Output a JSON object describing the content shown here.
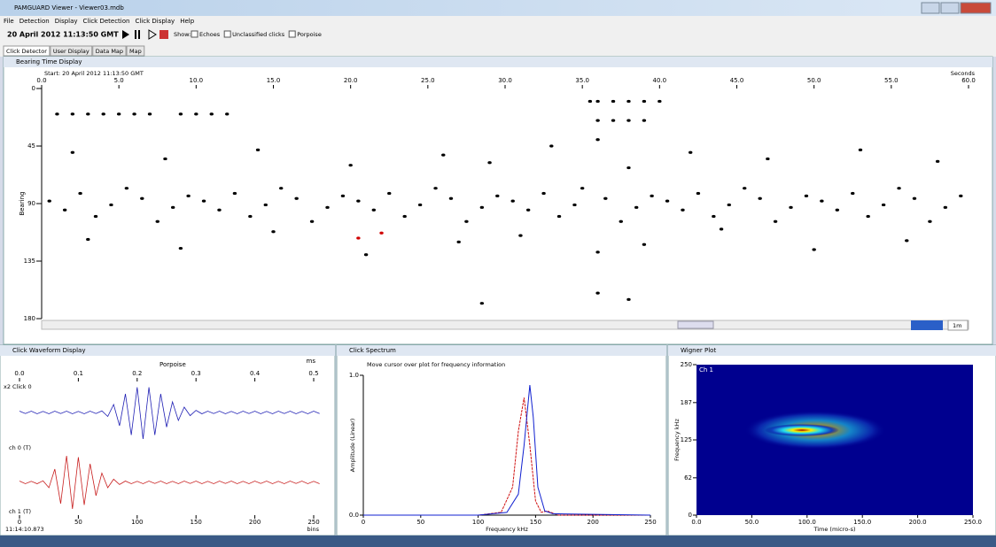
{
  "window": {
    "title": "PAMGUARD Viewer - Viewer03.mdb"
  },
  "menu": [
    "File",
    "Detection",
    "Display",
    "Click Detection",
    "Click Display",
    "Help"
  ],
  "toolbar": {
    "time": "20 April 2012 11:13:50 GMT",
    "show": "Show:",
    "checks": [
      "Echoes",
      "Unclassified clicks",
      "Porpoise"
    ]
  },
  "tabs": [
    "Click Detector",
    "User Display",
    "Data Map",
    "Map"
  ],
  "chart_data": [
    {
      "type": "scatter",
      "title": "Bearing Time Display",
      "subtitle": "Start: 20 April 2012 11:13:50 GMT",
      "xlabel": "Seconds",
      "ylabel": "Bearing",
      "zoom": "1m",
      "xlim": [
        0,
        60
      ],
      "xticks": [
        {
          "value": 0,
          "label": "0.0"
        },
        {
          "value": 5,
          "label": "5.0"
        },
        {
          "value": 10,
          "label": "10.0"
        },
        {
          "value": 15,
          "label": "15.0"
        },
        {
          "value": 20,
          "label": "20.0"
        },
        {
          "value": 25,
          "label": "25.0"
        },
        {
          "value": 30,
          "label": "30.0"
        },
        {
          "value": 35,
          "label": "35.0"
        },
        {
          "value": 40,
          "label": "40.0"
        },
        {
          "value": 45,
          "label": "45.0"
        },
        {
          "value": 50,
          "label": "50.0"
        },
        {
          "value": 55,
          "label": "55.0"
        },
        {
          "value": 60,
          "label": "60.0"
        }
      ],
      "ylim": [
        0,
        180
      ],
      "y_inverted": true,
      "yticks": [
        0,
        45,
        90,
        135,
        180
      ],
      "series": [
        {
          "color": "#000000",
          "x": [
            1,
            2,
            3,
            4,
            5,
            6,
            7,
            9,
            10,
            11,
            12,
            35.5,
            36,
            37,
            38,
            39,
            40,
            36,
            37,
            38,
            39,
            0.5,
            1.5,
            2.5,
            3.5,
            4.5,
            5.5,
            6.5,
            7.5,
            8.5,
            9.5,
            10.5,
            11.5,
            12.5,
            13.5,
            14.5,
            15.5,
            16.5,
            17.5,
            18.5,
            19.5,
            20.5,
            21.5,
            22.5,
            23.5,
            24.5,
            25.5,
            26.5,
            27.5,
            28.5,
            29.5,
            30.5,
            31.5,
            32.5,
            33.5,
            34.5,
            35,
            36.5,
            37.5,
            38.5,
            39.5,
            40.5,
            41.5,
            42.5,
            43.5,
            44.5,
            45.5,
            46.5,
            47.5,
            48.5,
            49.5,
            50.5,
            51.5,
            52.5,
            53.5,
            54.5,
            55.5,
            56.5,
            57.5,
            58.5,
            59.5,
            2,
            8,
            14,
            20,
            26,
            29,
            33,
            36,
            38,
            42,
            47,
            53,
            58,
            3,
            9,
            15,
            21,
            27,
            31,
            36,
            39,
            44,
            50,
            56,
            28.5,
            36,
            38
          ],
          "y": [
            20,
            20,
            20,
            20,
            20,
            20,
            20,
            20,
            20,
            20,
            20,
            10,
            10,
            10,
            10,
            10,
            10,
            25,
            25,
            25,
            25,
            88,
            95,
            82,
            100,
            91,
            78,
            86,
            104,
            93,
            84,
            88,
            95,
            82,
            100,
            91,
            78,
            86,
            104,
            93,
            84,
            88,
            95,
            82,
            100,
            91,
            78,
            86,
            104,
            93,
            84,
            88,
            95,
            82,
            100,
            91,
            78,
            86,
            104,
            93,
            84,
            88,
            95,
            82,
            100,
            91,
            78,
            86,
            104,
            93,
            84,
            88,
            95,
            82,
            100,
            91,
            78,
            86,
            104,
            93,
            84,
            50,
            55,
            48,
            60,
            52,
            58,
            45,
            40,
            62,
            50,
            55,
            48,
            57,
            118,
            125,
            112,
            130,
            120,
            115,
            128,
            122,
            110,
            126,
            119,
            168,
            160,
            165
          ]
        },
        {
          "color": "#d00000",
          "x": [
            20.5,
            22
          ],
          "y": [
            117,
            113
          ]
        }
      ]
    },
    {
      "type": "line",
      "title": "Click Waveform Display",
      "subtitle": "Porpoise",
      "xlabel_top": "ms",
      "xlabel": "bins",
      "time": "11:14:10.873",
      "scale": "x2",
      "labels": [
        "Click 0",
        "ch 0 (T)",
        "ch 1 (T)"
      ],
      "xlim": [
        0,
        250
      ],
      "xticks": [
        0,
        50,
        100,
        150,
        200,
        250
      ],
      "x2ticks": [
        {
          "value": 0,
          "label": "0.0"
        },
        {
          "value": 0.1,
          "label": "0.1"
        },
        {
          "value": 0.2,
          "label": "0.2"
        },
        {
          "value": 0.3,
          "label": "0.3"
        },
        {
          "value": 0.4,
          "label": "0.4"
        },
        {
          "value": 0.5,
          "label": "0.5"
        }
      ],
      "x2lim": [
        0,
        0.5
      ],
      "x": [
        0,
        5,
        10,
        15,
        20,
        25,
        30,
        35,
        40,
        45,
        50,
        55,
        60,
        65,
        70,
        75,
        80,
        85,
        90,
        95,
        100,
        105,
        110,
        115,
        120,
        125,
        130,
        135,
        140,
        145,
        150,
        155,
        160,
        165,
        170,
        175,
        180,
        185,
        190,
        195,
        200,
        205,
        210,
        215,
        220,
        225,
        230,
        235,
        240,
        245,
        250,
        255
      ],
      "ylim": [
        -1,
        1
      ],
      "series": [
        {
          "color": "#1f1fb4",
          "values": [
            0.05,
            -0.04,
            0.05,
            -0.05,
            0.04,
            -0.05,
            0.05,
            -0.04,
            0.05,
            -0.05,
            0.04,
            -0.05,
            0.05,
            -0.04,
            0.06,
            -0.15,
            0.3,
            -0.5,
            0.7,
            -0.85,
            0.95,
            -1,
            0.95,
            -0.85,
            0.7,
            -0.55,
            0.4,
            -0.3,
            0.2,
            -0.12,
            0.08,
            -0.05,
            0.05,
            -0.04,
            0.05,
            -0.05,
            0.04,
            -0.05,
            0.05,
            -0.04,
            0.05,
            -0.05,
            0.04,
            -0.05,
            0.05,
            -0.04,
            0.05,
            -0.05,
            0.04,
            -0.05,
            0.05,
            -0.04
          ]
        },
        {
          "color": "#c81e1e",
          "values": [
            0.05,
            -0.05,
            0.04,
            -0.05,
            0.06,
            -0.2,
            0.5,
            -0.8,
            1,
            -1,
            0.95,
            -0.85,
            0.7,
            -0.5,
            0.35,
            -0.2,
            0.12,
            -0.08,
            0.05,
            -0.05,
            0.04,
            -0.05,
            0.05,
            -0.04,
            0.05,
            -0.05,
            0.04,
            -0.05,
            0.05,
            -0.04,
            0.05,
            -0.05,
            0.04,
            -0.05,
            0.05,
            -0.04,
            0.05,
            -0.05,
            0.04,
            -0.05,
            0.05,
            -0.04,
            0.05,
            -0.05,
            0.04,
            -0.05,
            0.05,
            -0.04,
            0.05,
            -0.05,
            0.04,
            -0.05
          ]
        }
      ]
    },
    {
      "type": "line",
      "title": "Click Spectrum",
      "note": "Move cursor over plot for frequency information",
      "xlabel": "Frequency kHz",
      "ylabel": "Amplitude (Linear)",
      "xlim": [
        0,
        250
      ],
      "xticks": [
        0,
        50,
        100,
        150,
        200,
        250
      ],
      "ylim": [
        0,
        1
      ],
      "yticks": [
        {
          "value": 0,
          "label": "0.0"
        },
        {
          "value": 1,
          "label": "1.0"
        }
      ],
      "series": [
        {
          "color": "#d01010",
          "x": [
            0,
            50,
            100,
            120,
            130,
            135,
            140,
            145,
            150,
            155,
            160,
            170,
            250
          ],
          "values": [
            0,
            0,
            0,
            0.02,
            0.2,
            0.6,
            0.84,
            0.5,
            0.1,
            0.02,
            0.03,
            0,
            0
          ]
        },
        {
          "color": "#1020d0",
          "x": [
            0,
            50,
            100,
            125,
            135,
            140,
            145,
            148,
            152,
            158,
            165,
            250
          ],
          "values": [
            0,
            0,
            0,
            0.02,
            0.15,
            0.5,
            0.93,
            0.7,
            0.2,
            0.03,
            0.01,
            0
          ]
        }
      ]
    },
    {
      "type": "heatmap",
      "title": "Wigner Plot",
      "channel": "Ch 1",
      "xlabel": "Time (micro-s)",
      "ylabel": "Frequency kHz",
      "xlim": [
        0,
        250
      ],
      "xticks": [
        {
          "value": 0,
          "label": "0.0"
        },
        {
          "value": 50,
          "label": "50.0"
        },
        {
          "value": 100,
          "label": "100.0"
        },
        {
          "value": 150,
          "label": "150.0"
        },
        {
          "value": 200,
          "label": "200.0"
        },
        {
          "value": 250,
          "label": "250.0"
        }
      ],
      "ylim": [
        0,
        250
      ],
      "yticks": [
        0,
        62,
        125,
        187,
        250
      ]
    }
  ]
}
